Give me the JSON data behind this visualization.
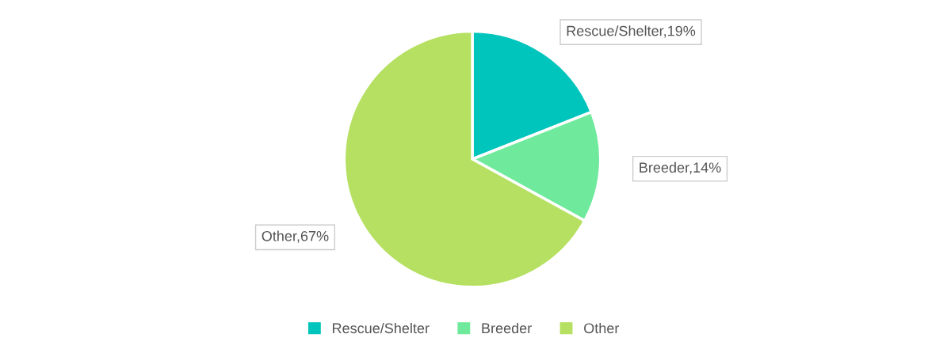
{
  "chart_data": {
    "type": "pie",
    "categories": [
      "Rescue/Shelter",
      "Breeder",
      "Other"
    ],
    "values": [
      19,
      14,
      67
    ],
    "colors": [
      "#00c5bc",
      "#6fea9c",
      "#b5e061"
    ],
    "value_labels": [
      "Rescue/Shelter,19%",
      "Breeder,14%",
      "Other,67%"
    ],
    "legend": "bottom"
  }
}
